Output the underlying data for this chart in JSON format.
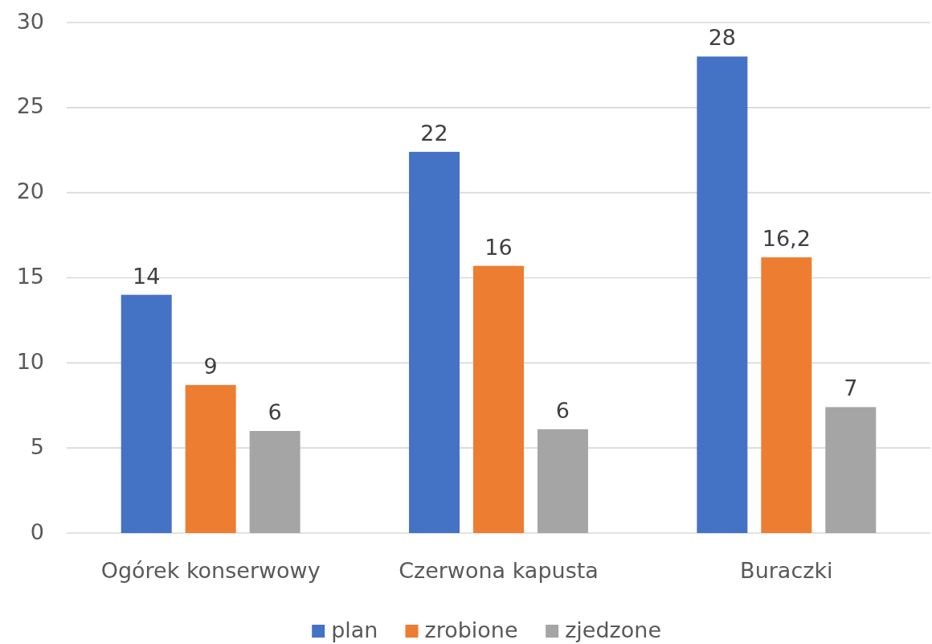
{
  "chart_data": {
    "type": "bar",
    "categories": [
      "Ogórek konserwowy",
      "Czerwona kapusta",
      "Buraczki"
    ],
    "series": [
      {
        "name": "plan",
        "color": "#4472c4",
        "values": [
          14,
          22.4,
          28
        ],
        "value_labels": [
          "14",
          "22",
          "28"
        ]
      },
      {
        "name": "zrobione",
        "color": "#ed7d31",
        "values": [
          8.7,
          15.7,
          16.2
        ],
        "value_labels": [
          "9",
          "16",
          "16,2"
        ]
      },
      {
        "name": "zjedzone",
        "color": "#a5a5a5",
        "values": [
          6,
          6.1,
          7.4
        ],
        "value_labels": [
          "6",
          "6",
          "7"
        ]
      }
    ],
    "ylim": [
      0,
      30
    ],
    "yticks": [
      0,
      5,
      10,
      15,
      20,
      25,
      30
    ],
    "grid": "y",
    "legend": "bottom"
  }
}
